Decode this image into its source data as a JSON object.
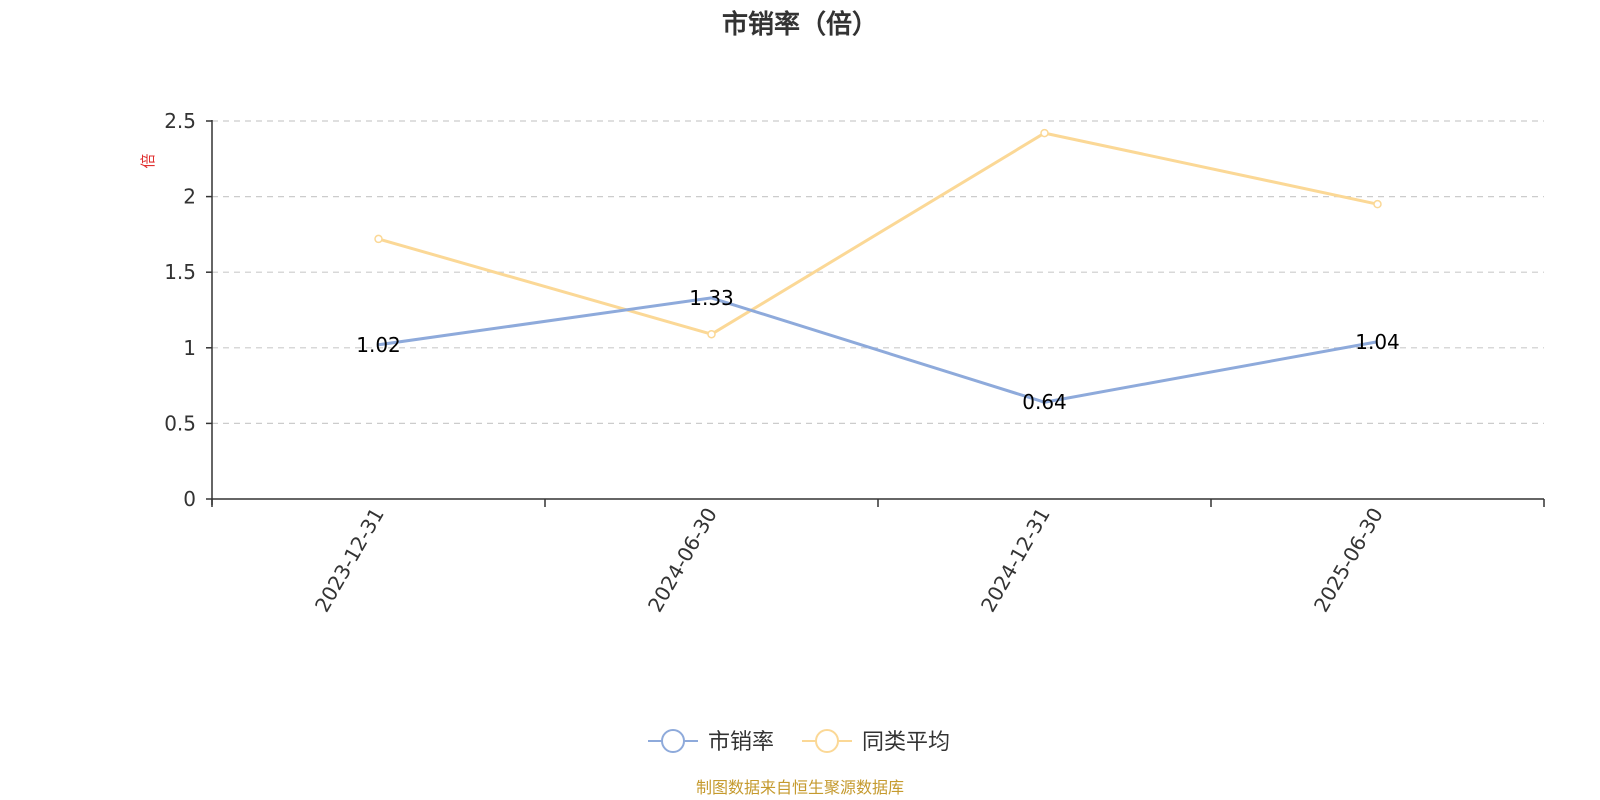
{
  "chart_data": {
    "type": "line",
    "title": "市销率（倍）",
    "y_unit": "倍",
    "categories": [
      "2023-12-31",
      "2024-06-30",
      "2024-12-31",
      "2025-06-30"
    ],
    "series": [
      {
        "name": "市销率",
        "values": [
          1.02,
          1.33,
          0.64,
          1.04
        ],
        "data_labels": [
          "1.02",
          "1.33",
          "0.64",
          "1.04"
        ],
        "color": "#8eaadb"
      },
      {
        "name": "同类平均",
        "values": [
          1.72,
          1.09,
          2.42,
          1.95
        ],
        "color": "#fbd896"
      }
    ],
    "ylim": [
      0,
      2.5
    ],
    "yticks": [
      "0",
      "0.5",
      "1",
      "1.5",
      "2",
      "2.5"
    ],
    "grid": true,
    "legend_position": "bottom",
    "source_note": "制图数据来自恒生聚源数据库"
  },
  "colors": {
    "unit_label": "#e03030",
    "source_note": "#c59a2e",
    "axis": "#333333",
    "grid": "#cccccc"
  }
}
